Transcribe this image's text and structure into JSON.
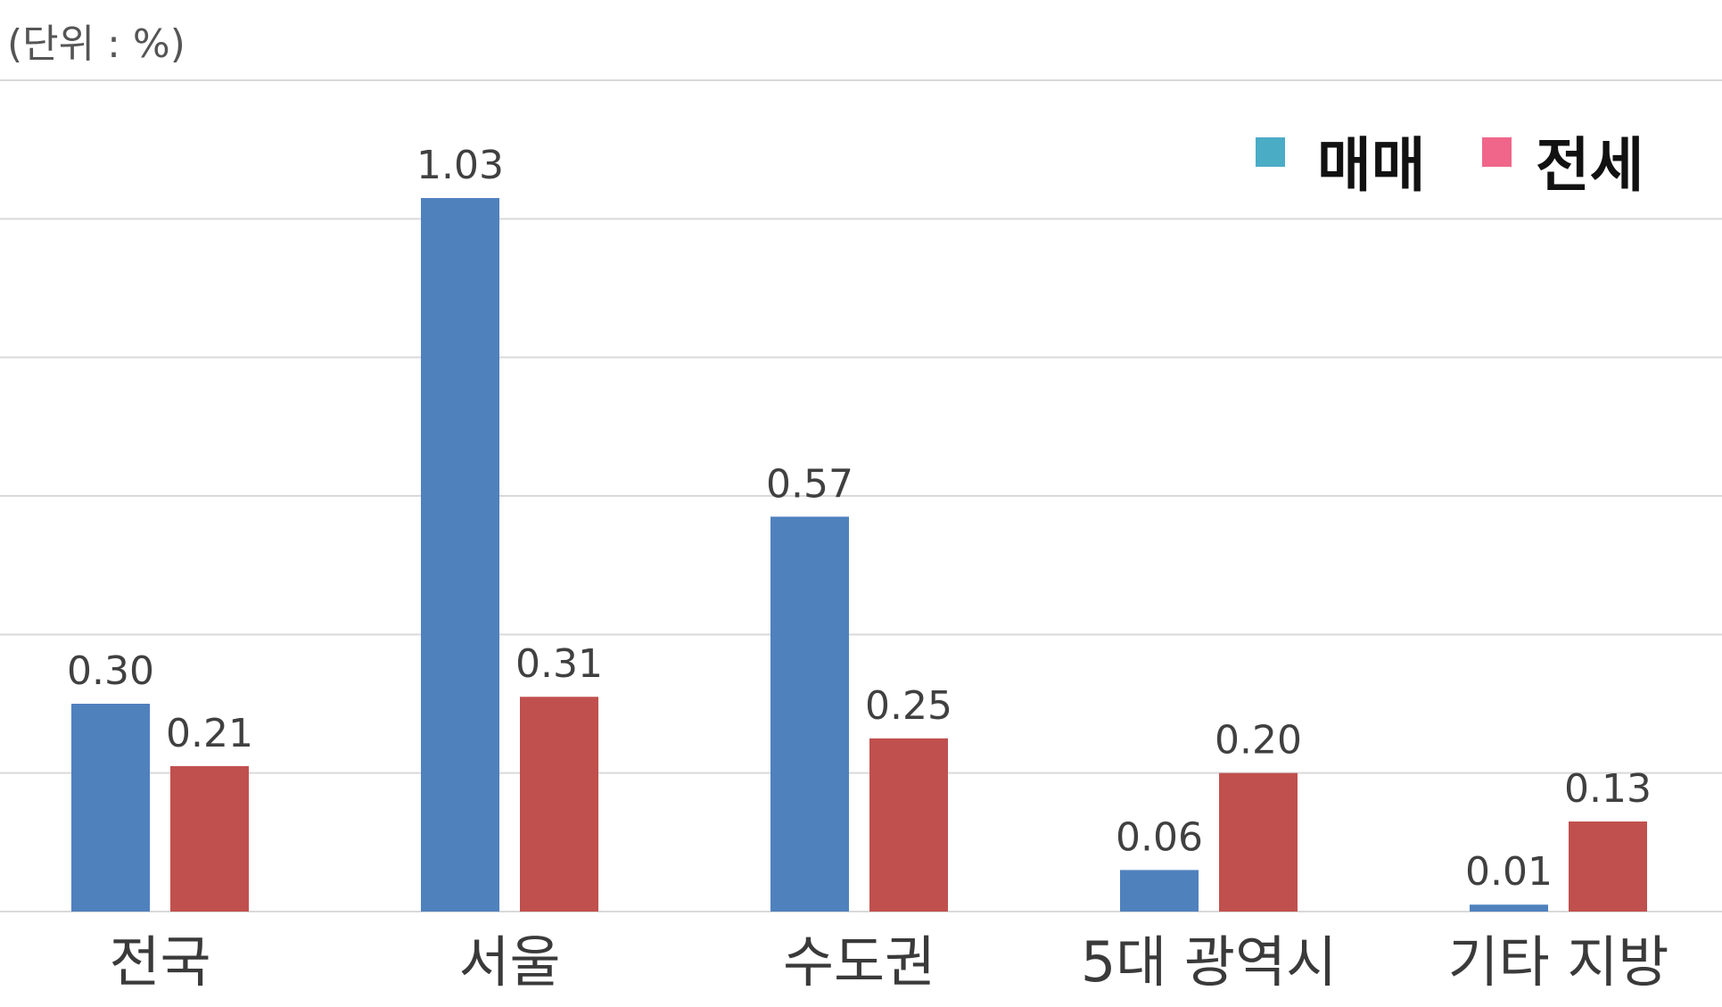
{
  "chart_data": {
    "type": "bar",
    "unit_label": "(단위 : %)",
    "categories": [
      "전국",
      "서울",
      "수도권",
      "5대 광역시",
      "기타 지방"
    ],
    "series": [
      {
        "name": "매매",
        "color": "#4f81bd",
        "values": [
          0.3,
          1.03,
          0.57,
          0.06,
          0.01
        ],
        "labels": [
          "0.30",
          "1.03",
          "0.57",
          "0.06",
          "0.01"
        ]
      },
      {
        "name": "전세",
        "color": "#c0504d",
        "values": [
          0.21,
          0.31,
          0.25,
          0.2,
          0.13
        ],
        "labels": [
          "0.21",
          "0.31",
          "0.25",
          "0.20",
          "0.13"
        ]
      }
    ],
    "legend": {
      "position": "top-right",
      "items": [
        {
          "label": "매매",
          "color": "#4bacc6"
        },
        {
          "label": "전세",
          "color": "#f0668a"
        }
      ]
    },
    "ylim": [
      0,
      1.2
    ],
    "grid": true
  }
}
